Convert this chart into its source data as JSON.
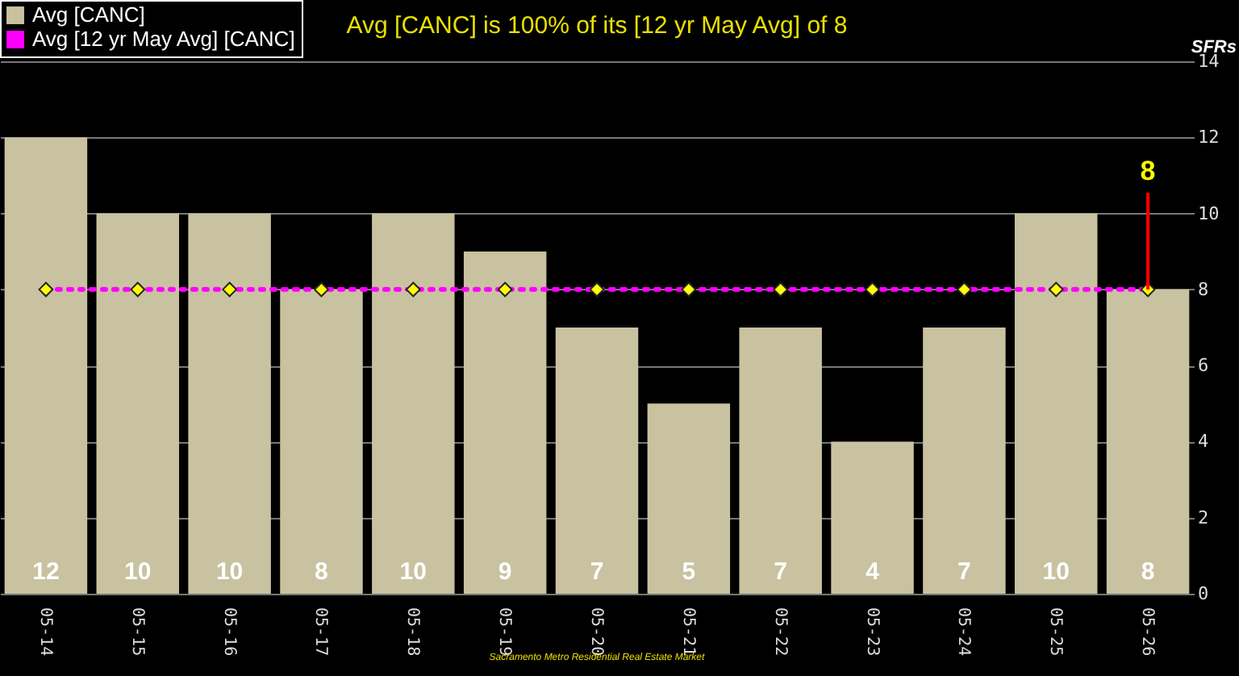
{
  "chart_data": {
    "type": "bar",
    "title": "Avg [CANC] is 100% of its [12 yr May Avg] of 8",
    "ylabel": "SFRs",
    "categories": [
      "05-14",
      "05-15",
      "05-16",
      "05-17",
      "05-18",
      "05-19",
      "05-20",
      "05-21",
      "05-22",
      "05-23",
      "05-24",
      "05-25",
      "05-26"
    ],
    "series": [
      {
        "name": "Avg [CANC]",
        "color": "#c9c2a0",
        "values": [
          12,
          10,
          10,
          8,
          10,
          9,
          7,
          5,
          7,
          4,
          7,
          10,
          8
        ],
        "value_labels": [
          "12",
          "10",
          "10",
          "8",
          "10",
          "9",
          "7",
          "5",
          "7",
          "4",
          "7",
          "10",
          "8"
        ]
      },
      {
        "name": "Avg [12 yr May Avg] [CANC]",
        "type": "line",
        "color": "#ff00ff",
        "values": [
          8,
          8,
          8,
          8,
          8,
          8,
          8,
          8,
          8,
          8,
          8,
          8,
          8
        ]
      }
    ],
    "ylim": [
      0,
      14
    ],
    "yticks": [
      0,
      2,
      4,
      6,
      8,
      10,
      12,
      14
    ],
    "grid": "y",
    "legend": "top left",
    "marker": "diamond",
    "line_style": "dotted",
    "annotations": [
      "Sacramento Metro Residential Real Estate Market",
      {
        "text": "8",
        "x": "05-26",
        "y": 8
      }
    ]
  }
}
